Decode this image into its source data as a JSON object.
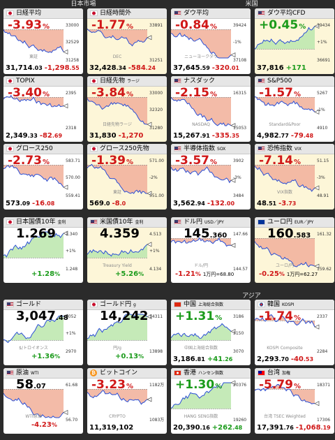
{
  "sections": {
    "japan": "日本市場",
    "us": "米国",
    "asia": "アジア"
  },
  "colors": {
    "up": "#1b9b1b",
    "down": "#d01818",
    "fill_down": "#f2b49e",
    "fill_up": "#bfe8b0",
    "line": "#2a4fd6"
  },
  "cards": [
    {
      "name": "日経平均",
      "flag": "jp-flag-icon",
      "pct": "-3.93",
      "dir": "dn",
      "ticks": [
        "33000",
        "32529",
        "31258"
      ],
      "tag": "東証",
      "main": "31,714",
      "dec": ".03",
      "delta": "-1,298",
      "deltadec": ".55"
    },
    {
      "name": "日経時間外",
      "flag": "jp-flag-icon",
      "pct": "-1.77",
      "dir": "dn",
      "ticks": [
        "33891",
        "31251"
      ],
      "tag": "DEC",
      "main": "32,428",
      "dec": ".34",
      "delta": "-584",
      "deltadec": ".24"
    },
    {
      "name": "ダウ平均",
      "flag": "us-flag-icon",
      "pct": "-0.84",
      "dir": "dn",
      "ticks": [
        "39424",
        "-1%",
        "37108"
      ],
      "tag": "ニューヨークダウ",
      "main": "37,645",
      "dec": ".59",
      "delta": "-320",
      "deltadec": ".01"
    },
    {
      "name": "ダウ平均CFD",
      "flag": "us-flag-icon",
      "pct": "+0.45",
      "dir": "up",
      "ticks": [
        "39434",
        "+1%",
        "36691"
      ],
      "tag": "",
      "main": "37,816",
      "dec": "",
      "delta": "+171",
      "deltadec": ""
    },
    {
      "name": "TOPIX",
      "flag": "jp-flag-icon",
      "pct": "-3.40",
      "dir": "dn",
      "ticks": [
        "2395",
        "2318"
      ],
      "tag": "",
      "main": "2,349",
      "dec": ".33",
      "delta": "-82",
      "deltadec": ".69"
    },
    {
      "name": "日経先物",
      "sub": "ラージ",
      "flag": "jp-flag-icon",
      "pct": "-3.84",
      "dir": "dn",
      "ticks": [
        "33000",
        "32320",
        "31280"
      ],
      "tag": "日経先物ラージ",
      "main": "31,830",
      "dec": "",
      "delta": "-1,270",
      "deltadec": ""
    },
    {
      "name": "ナスダック",
      "flag": "us-flag-icon",
      "pct": "-2.15",
      "dir": "dn",
      "ticks": [
        "16315",
        "15053"
      ],
      "tag": "NASDAQ",
      "main": "15,267",
      "dec": ".91",
      "delta": "-335",
      "deltadec": ".35"
    },
    {
      "name": "S&P500",
      "flag": "us-flag-icon",
      "pct": "-1.57",
      "dir": "dn",
      "ticks": [
        "5267",
        "-1%",
        "4910"
      ],
      "tag": "Standard&Poor",
      "main": "4,982",
      "dec": ".77",
      "delta": "-79",
      "deltadec": ".48"
    },
    {
      "name": "グロース250",
      "flag": "jp-flag-icon",
      "pct": "-2.73",
      "dir": "dn",
      "ticks": [
        "583.71",
        "570.00",
        "559.41"
      ],
      "tag": "",
      "main": "573",
      "dec": ".09",
      "delta": "-16",
      "deltadec": ".08"
    },
    {
      "name": "グロース250先物",
      "flag": "jp-flag-icon",
      "pct": "-1.39",
      "dir": "dn",
      "ticks": [
        "571.00",
        "-2%",
        "551.00"
      ],
      "tag": "東証",
      "main": "569",
      "dec": ".0",
      "delta": "-8",
      "deltadec": ".0"
    },
    {
      "name": "半導体指数",
      "sub": "SOX",
      "flag": "us-flag-icon",
      "pct": "-3.57",
      "dir": "dn",
      "ticks": [
        "3902",
        "-3%",
        "3484"
      ],
      "tag": "",
      "main": "3,562",
      "dec": ".94",
      "delta": "-132",
      "deltadec": ".00"
    },
    {
      "name": "恐怖指数",
      "sub": "VIX",
      "flag": "us-flag-icon",
      "pct": "-7.14",
      "dir": "dn",
      "ticks": [
        "51.15",
        "-3%",
        "48.91"
      ],
      "tag": "VIX指数",
      "main": "48",
      "dec": ".51",
      "delta": "-3",
      "deltadec": ".73"
    },
    {
      "name": "日本国債10年",
      "sub": "金利",
      "flag": "jp-flag-icon",
      "big": "1.269",
      "bigdec": "",
      "dir": "up",
      "ticks": [
        "1.340",
        "+1%",
        "1.248"
      ],
      "tag": "",
      "bpct": "+1.28"
    },
    {
      "name": "米国債10年",
      "sub": "金利",
      "flag": "us-flag-icon",
      "big": "4.359",
      "bigdec": "",
      "dir": "up",
      "ticks": [
        "4.513",
        "+1%",
        "4.134"
      ],
      "tag": "Treasury Yield",
      "bpct": "+5.26"
    },
    {
      "name": "ドル円",
      "sub": "USD／JPY",
      "flag": "us-flag-icon",
      "big": "145",
      "bigdec": ".360",
      "dir": "dn",
      "ticks": [
        "147.66",
        "144.57"
      ],
      "tag": "ドル/円",
      "bpct": "-1.21",
      "extra": "1万円=68.80"
    },
    {
      "name": "ユーロ円",
      "sub": "EUR／JPY",
      "flag": "eu-flag-icon",
      "big": "160",
      "bigdec": ".583",
      "dir": "dn",
      "ticks": [
        "161.32",
        "159.62"
      ],
      "tag": "ユーロ/円",
      "bpct": "-0.25",
      "extra": "1万円=62.27"
    },
    {
      "name": "ゴールド",
      "flag": "us-flag-icon",
      "big": "3,047",
      "bigdec": ".48",
      "dir": "up",
      "ticks": [
        "3052",
        "+1%",
        "2970"
      ],
      "tag": "$/トロイオンス",
      "bpct": "+1.36"
    },
    {
      "name": "ゴールド円",
      "sub": "g",
      "flag": "jp-flag-icon",
      "big": "14,242",
      "bigdec": "",
      "dir": "up",
      "ticks": [
        "14311",
        "13898"
      ],
      "tag": "円/g",
      "bpct": "+0.13"
    },
    {
      "name": "中国",
      "sub": "上海総合指数",
      "flag": "cn-flag-icon",
      "pct": "+1.31",
      "dir": "up",
      "ticks": [
        "3186",
        "3150",
        "3070"
      ],
      "tag": "中国上海総合指数",
      "main": "3,186",
      "dec": ".81",
      "delta": "+41",
      "deltadec": ".26"
    },
    {
      "name": "韓国",
      "sub": "KOSPI",
      "flag": "kr-flag-icon",
      "pct": "-1.74",
      "dir": "dn",
      "ticks": [
        "2337",
        "2284"
      ],
      "tag": "KOSPI Composite",
      "main": "2,293",
      "dec": ".70",
      "delta": "-40",
      "deltadec": ".53"
    },
    {
      "name": "原油",
      "sub": "WTI",
      "flag": "us-flag-icon",
      "big": "58",
      "bigdec": ".07",
      "dir": "dn",
      "ticks": [
        "61.68",
        "56.70"
      ],
      "tag": "WTI原油",
      "bpct": "-4.23"
    },
    {
      "name": "ビットコイン",
      "flag": "btc-icon",
      "pct": "-3.23",
      "dir": "dn",
      "ticks": [
        "1182万",
        "1083万"
      ],
      "tag": "CRYPTO",
      "main": "11,319,102",
      "dec": "",
      "delta": "",
      "deltadec": ""
    },
    {
      "name": "香港",
      "sub": "ハンセン指数",
      "flag": "hk-flag-icon",
      "pct": "+1.30",
      "dir": "up",
      "ticks": [
        "20376",
        "19260"
      ],
      "tag": "HANG SENG指数",
      "main": "20,390",
      "dec": ".16",
      "delta": "+262",
      "deltadec": ".48"
    },
    {
      "name": "台湾",
      "sub": "加権",
      "flag": "tw-flag-icon",
      "pct": "-5.79",
      "dir": "dn",
      "ticks": [
        "18371",
        "17306"
      ],
      "tag": "台湾 TSEC Weighted",
      "main": "17,391",
      "dec": ".76",
      "delta": "-1,068",
      "deltadec": ".19"
    }
  ]
}
